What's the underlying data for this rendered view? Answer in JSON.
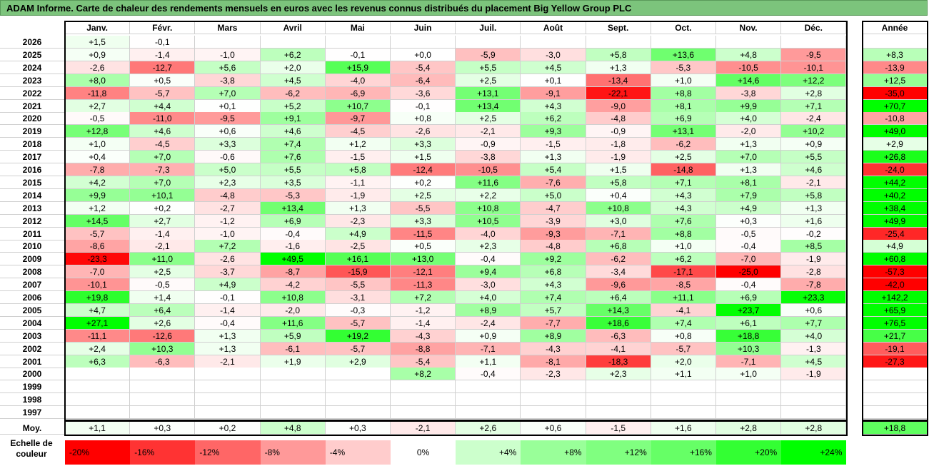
{
  "title": "ADAM Informe. Carte de chaleur des rendements mensuels en euros avec les revenus connus distribués du placement Big Yellow Group PLC",
  "chart_data": {
    "type": "heatmap",
    "months": [
      "Janv.",
      "Févr.",
      "Mars",
      "Avril",
      "Mai",
      "Juin",
      "Juil.",
      "Août",
      "Sept.",
      "Oct.",
      "Nov.",
      "Déc."
    ],
    "year_header": "Année",
    "rows": [
      {
        "year": "2026",
        "m": [
          "+1,5",
          "-0,1",
          "",
          "",
          "",
          "",
          "",
          "",
          "",
          "",
          "",
          ""
        ],
        "y": ""
      },
      {
        "year": "2025",
        "m": [
          "+0,9",
          "-1,4",
          "-1,0",
          "+6,2",
          "-0,1",
          "+0,0",
          "-5,9",
          "-3,0",
          "+5,8",
          "+13,6",
          "+4,8",
          "-9,5"
        ],
        "y": "+8,3"
      },
      {
        "year": "2024",
        "m": [
          "-2,6",
          "-12,7",
          "+5,6",
          "+2,0",
          "+15,9",
          "-5,4",
          "+5,5",
          "+4,5",
          "+1,3",
          "-5,3",
          "-10,5",
          "-10,1"
        ],
        "y": "-13,9"
      },
      {
        "year": "2023",
        "m": [
          "+8,0",
          "+0,5",
          "-3,8",
          "+4,5",
          "-4,0",
          "-6,4",
          "+2,5",
          "+0,1",
          "-13,4",
          "+1,0",
          "+14,6",
          "+12,2"
        ],
        "y": "+12,5"
      },
      {
        "year": "2022",
        "m": [
          "-11,8",
          "-5,7",
          "+7,0",
          "-6,2",
          "-6,9",
          "-3,6",
          "+13,1",
          "-9,1",
          "-22,1",
          "+8,8",
          "-3,8",
          "+2,8"
        ],
        "y": "-35,0"
      },
      {
        "year": "2021",
        "m": [
          "+2,7",
          "+4,4",
          "+0,1",
          "+5,2",
          "+10,7",
          "-0,1",
          "+13,4",
          "+4,3",
          "-9,0",
          "+8,1",
          "+9,9",
          "+7,1"
        ],
        "y": "+70,7"
      },
      {
        "year": "2020",
        "m": [
          "-0,5",
          "-11,0",
          "-9,5",
          "+9,1",
          "-9,7",
          "+0,8",
          "+2,5",
          "+6,2",
          "-4,8",
          "+6,9",
          "+4,0",
          "-2,4"
        ],
        "y": "-10,8"
      },
      {
        "year": "2019",
        "m": [
          "+12,8",
          "+4,6",
          "+0,6",
          "+4,6",
          "-4,5",
          "-2,6",
          "-2,1",
          "+9,3",
          "-0,9",
          "+13,1",
          "-2,0",
          "+10,2"
        ],
        "y": "+49,0"
      },
      {
        "year": "2018",
        "m": [
          "+1,0",
          "-4,5",
          "+3,3",
          "+7,4",
          "+1,2",
          "+3,3",
          "-0,9",
          "-1,5",
          "-1,8",
          "-6,2",
          "+1,3",
          "+0,9"
        ],
        "y": "+2,9"
      },
      {
        "year": "2017",
        "m": [
          "+0,4",
          "+7,0",
          "-0,6",
          "+7,6",
          "-1,5",
          "+1,5",
          "-3,8",
          "+1,3",
          "-1,9",
          "+2,5",
          "+7,0",
          "+5,5"
        ],
        "y": "+26,8"
      },
      {
        "year": "2016",
        "m": [
          "-7,8",
          "-7,3",
          "+5,0",
          "+5,5",
          "+5,8",
          "-12,4",
          "-10,5",
          "+5,4",
          "+1,5",
          "-14,8",
          "+1,3",
          "+4,6"
        ],
        "y": "-24,0"
      },
      {
        "year": "2015",
        "m": [
          "+4,2",
          "+7,0",
          "+2,3",
          "+3,5",
          "-1,1",
          "+0,2",
          "+11,6",
          "-7,6",
          "+5,8",
          "+7,1",
          "+8,1",
          "-2,1"
        ],
        "y": "+44,2"
      },
      {
        "year": "2014",
        "m": [
          "+9,9",
          "+10,1",
          "-4,8",
          "-5,3",
          "-1,9",
          "+2,5",
          "+2,2",
          "+5,0",
          "+0,4",
          "+4,3",
          "+7,9",
          "+5,8"
        ],
        "y": "+40,2"
      },
      {
        "year": "2013",
        "m": [
          "+1,2",
          "+0,2",
          "-2,7",
          "+13,4",
          "+1,3",
          "-5,5",
          "+10,8",
          "-4,7",
          "+10,8",
          "+4,3",
          "+4,9",
          "+1,3"
        ],
        "y": "+38,4"
      },
      {
        "year": "2012",
        "m": [
          "+14,5",
          "+2,7",
          "-1,2",
          "+6,9",
          "-2,3",
          "+3,3",
          "+10,5",
          "-3,9",
          "+3,0",
          "+7,6",
          "+0,3",
          "+1,6"
        ],
        "y": "+49,9"
      },
      {
        "year": "2011",
        "m": [
          "-5,7",
          "-1,4",
          "-1,0",
          "-0,4",
          "+4,9",
          "-11,5",
          "-4,0",
          "-9,3",
          "-7,1",
          "+8,8",
          "-0,5",
          "-0,2"
        ],
        "y": "-25,4"
      },
      {
        "year": "2010",
        "m": [
          "-8,6",
          "-2,1",
          "+7,2",
          "-1,6",
          "-2,5",
          "+0,5",
          "+2,3",
          "-4,8",
          "+6,8",
          "+1,0",
          "-0,4",
          "+8,5"
        ],
        "y": "+4,9"
      },
      {
        "year": "2009",
        "m": [
          "-23,3",
          "+11,0",
          "-2,6",
          "+49,5",
          "+16,1",
          "+13,0",
          "-0,4",
          "+9,2",
          "-6,2",
          "+6,2",
          "-7,0",
          "-1,9"
        ],
        "y": "+60,8"
      },
      {
        "year": "2008",
        "m": [
          "-7,0",
          "+2,5",
          "-3,7",
          "-8,7",
          "-15,9",
          "-12,1",
          "+9,4",
          "+6,8",
          "-3,4",
          "-17,1",
          "-25,0",
          "-2,8"
        ],
        "y": "-57,3"
      },
      {
        "year": "2007",
        "m": [
          "-10,1",
          "-0,5",
          "+4,9",
          "-4,2",
          "-5,5",
          "-11,3",
          "-3,0",
          "+4,3",
          "-9,6",
          "-8,5",
          "-0,4",
          "-7,8"
        ],
        "y": "-42,0"
      },
      {
        "year": "2006",
        "m": [
          "+19,8",
          "+1,4",
          "-0,1",
          "+10,8",
          "-3,1",
          "+7,2",
          "+4,0",
          "+7,4",
          "+6,4",
          "+11,1",
          "+6,9",
          "+23,3"
        ],
        "y": "+142,2"
      },
      {
        "year": "2005",
        "m": [
          "+4,7",
          "+6,4",
          "-1,4",
          "-2,0",
          "-0,3",
          "-1,2",
          "+8,9",
          "+5,7",
          "+14,3",
          "-4,1",
          "+23,7",
          "+0,6"
        ],
        "y": "+65,9"
      },
      {
        "year": "2004",
        "m": [
          "+27,1",
          "+2,6",
          "-0,4",
          "+11,6",
          "-5,7",
          "-1,4",
          "-2,4",
          "-7,7",
          "+18,6",
          "+7,4",
          "+6,1",
          "+7,7"
        ],
        "y": "+76,5"
      },
      {
        "year": "2003",
        "m": [
          "-11,1",
          "-12,6",
          "+1,3",
          "+5,9",
          "+19,2",
          "-4,3",
          "+0,9",
          "+8,9",
          "-6,3",
          "+0,8",
          "+18,8",
          "+4,0"
        ],
        "y": "+21,7"
      },
      {
        "year": "2002",
        "m": [
          "+2,4",
          "+10,3",
          "+1,3",
          "-6,1",
          "-5,7",
          "-8,8",
          "-7,1",
          "-4,3",
          "-4,1",
          "-5,7",
          "+10,3",
          "-1,3"
        ],
        "y": "-19,1"
      },
      {
        "year": "2001",
        "m": [
          "+6,3",
          "-6,3",
          "-2,1",
          "+1,9",
          "+2,9",
          "-5,4",
          "+1,1",
          "-8,1",
          "-18,3",
          "+2,0",
          "-7,1",
          "+4,5"
        ],
        "y": "-27,3"
      },
      {
        "year": "2000",
        "m": [
          "",
          "",
          "",
          "",
          "",
          "+8,2",
          "-0,4",
          "-2,3",
          "+2,3",
          "+1,1",
          "+1,0",
          "-1,9"
        ],
        "y": ""
      },
      {
        "year": "1999",
        "m": [
          "",
          "",
          "",
          "",
          "",
          "",
          "",
          "",
          "",
          "",
          "",
          ""
        ],
        "y": ""
      },
      {
        "year": "1998",
        "m": [
          "",
          "",
          "",
          "",
          "",
          "",
          "",
          "",
          "",
          "",
          "",
          ""
        ],
        "y": ""
      },
      {
        "year": "1997",
        "m": [
          "",
          "",
          "",
          "",
          "",
          "",
          "",
          "",
          "",
          "",
          "",
          ""
        ],
        "y": ""
      }
    ],
    "average": {
      "label": "Moy.",
      "m": [
        "+1,1",
        "+0,3",
        "+0,2",
        "+4,8",
        "+0,3",
        "-2,1",
        "+2,6",
        "+0,6",
        "-1,5",
        "+1,6",
        "+2,8",
        "+2,8"
      ],
      "y": "+18,8"
    },
    "scale": {
      "label": "Echelle de couleur",
      "steps": [
        {
          "label": "-20%",
          "value": -20,
          "color": "#ff0000"
        },
        {
          "label": "-16%",
          "value": -16,
          "color": "#ff3333"
        },
        {
          "label": "-12%",
          "value": -12,
          "color": "#ff6666"
        },
        {
          "label": "-8%",
          "value": -8,
          "color": "#ff9999"
        },
        {
          "label": "-4%",
          "value": -4,
          "color": "#ffcccc"
        },
        {
          "label": "0%",
          "value": 0,
          "color": "#ffffff"
        },
        {
          "label": "+4%",
          "value": 4,
          "color": "#ccffcc"
        },
        {
          "label": "+8%",
          "value": 8,
          "color": "#99ff99"
        },
        {
          "label": "+12%",
          "value": 12,
          "color": "#80ff80"
        },
        {
          "label": "+16%",
          "value": 16,
          "color": "#66ff66"
        },
        {
          "label": "+20%",
          "value": 20,
          "color": "#33ff33"
        },
        {
          "label": "+24%",
          "value": 24,
          "color": "#00ff00"
        }
      ]
    }
  }
}
